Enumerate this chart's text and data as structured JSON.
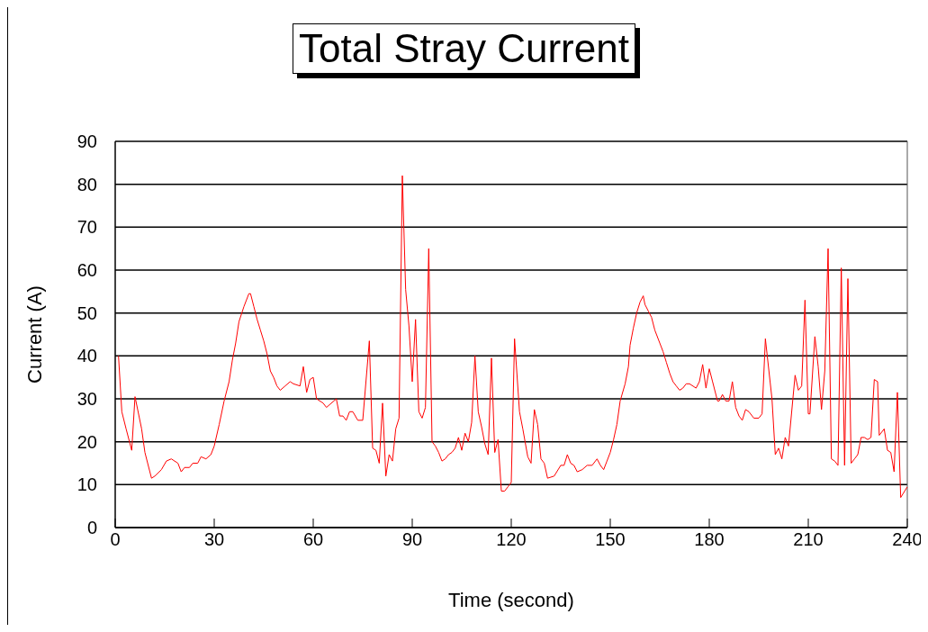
{
  "chart_data": {
    "type": "line",
    "title": "Total Stray Current",
    "xlabel": "Time (second)",
    "ylabel": "Current (A)",
    "xlim": [
      0,
      240
    ],
    "xticks": [
      0,
      30,
      60,
      90,
      120,
      150,
      180,
      210,
      240
    ],
    "ylim": [
      0,
      90
    ],
    "yticks": [
      0,
      10,
      20,
      30,
      40,
      50,
      60,
      70,
      80,
      90
    ],
    "grid": "y",
    "legend": false,
    "marker": "none",
    "line_style": "solid",
    "x": [
      1,
      2,
      3.3,
      5,
      6,
      8,
      9,
      11,
      12,
      14,
      15.5,
      17,
      19,
      20,
      21,
      22.5,
      23.5,
      25,
      26,
      27.5,
      29,
      30,
      31.5,
      33,
      34.5,
      35.5,
      36.5,
      37.5,
      39,
      40.5,
      41,
      42,
      43,
      44,
      45,
      46,
      47,
      48,
      49,
      50,
      51.5,
      53,
      54,
      56,
      57,
      58,
      59,
      60,
      61,
      63,
      64,
      67,
      68,
      69,
      70,
      71,
      72,
      73.5,
      75,
      77,
      78,
      79,
      80,
      81,
      82,
      83,
      84,
      85,
      86,
      87,
      88,
      89,
      90,
      91,
      92,
      93,
      94,
      95,
      96,
      97,
      98,
      99,
      100,
      101,
      102,
      103,
      104,
      105,
      106,
      107,
      108,
      109,
      110,
      111,
      112,
      113,
      114,
      115,
      116,
      117,
      118,
      119,
      120,
      121,
      122.5,
      123.5,
      125,
      126,
      127,
      128,
      129,
      130,
      131,
      133,
      135,
      136,
      137,
      138,
      139,
      140,
      141.5,
      143,
      144.5,
      146,
      147,
      148,
      149,
      150,
      151,
      152,
      153,
      154.5,
      155.5,
      156,
      157,
      158,
      159,
      160,
      160.5,
      161.5,
      162.5,
      163.5,
      165,
      166,
      167,
      168,
      169,
      170,
      171,
      172,
      173,
      174,
      176,
      177,
      178,
      179,
      180,
      181,
      182.5,
      183,
      184,
      185,
      186,
      187,
      188,
      189,
      190,
      191,
      192,
      193.5,
      195,
      196,
      197,
      199,
      200,
      201,
      202,
      203,
      204,
      206,
      207,
      208,
      209,
      210,
      210.5,
      212,
      213,
      214,
      215,
      216,
      217,
      218,
      219,
      220,
      221,
      222,
      223,
      224,
      225,
      226,
      227,
      228,
      229,
      230,
      231,
      231.5,
      233,
      234,
      235,
      236,
      237,
      238,
      240
    ],
    "series": [
      {
        "color": "#ff0000",
        "values": [
          40,
          27,
          23,
          18,
          30.5,
          23,
          17.5,
          11.5,
          12,
          13.5,
          15.5,
          16,
          15,
          13,
          14,
          14,
          15,
          15,
          16.5,
          16,
          17,
          19,
          24,
          29.5,
          34,
          39,
          43,
          48,
          51.5,
          54.5,
          54.5,
          51.5,
          48.5,
          46,
          43.5,
          40.5,
          36.5,
          35,
          33,
          32,
          33,
          34,
          33.5,
          33,
          37.5,
          31.5,
          34.5,
          35,
          30,
          29,
          28,
          30,
          26,
          26,
          25,
          27,
          27,
          25,
          25,
          43.5,
          18.5,
          18,
          15,
          29,
          12,
          17,
          15.5,
          23,
          25.5,
          82,
          55.5,
          47,
          34,
          48.5,
          27,
          25.5,
          28,
          65,
          20,
          19,
          17.5,
          15.5,
          16,
          17,
          17.5,
          18.5,
          21,
          18,
          22,
          20,
          24.5,
          40,
          27,
          23.5,
          19.5,
          17,
          39.5,
          17.5,
          20.5,
          8.5,
          8.5,
          9.5,
          10.5,
          44,
          27,
          23,
          16.5,
          15,
          27.5,
          24,
          16,
          15,
          11.5,
          12,
          14.5,
          14.5,
          17,
          15,
          14.5,
          13,
          13.5,
          14.5,
          14.5,
          16,
          14.5,
          13.5,
          15.5,
          17.5,
          20.5,
          24,
          29.5,
          33.5,
          37.5,
          42.5,
          46.5,
          50,
          52.5,
          54,
          52,
          50.5,
          49,
          46,
          43,
          41,
          38.5,
          36,
          34,
          33,
          32,
          32.5,
          33.5,
          33.5,
          32.5,
          34,
          38,
          32.5,
          37,
          34,
          29.5,
          29.5,
          31,
          29.5,
          29.5,
          34,
          28,
          26,
          25,
          27.5,
          27,
          25.5,
          25.5,
          26.5,
          44,
          30,
          17,
          18.5,
          16,
          21,
          19,
          35.5,
          32,
          33,
          53,
          26.5,
          26.5,
          44.5,
          37.5,
          27.5,
          36.5,
          65,
          16,
          15.5,
          14.5,
          60.5,
          14.5,
          58,
          15,
          16,
          17,
          21,
          21,
          20.5,
          21,
          34.5,
          34,
          21.5,
          23,
          18,
          17.5,
          13,
          31.5,
          7,
          9.5
        ]
      }
    ]
  }
}
